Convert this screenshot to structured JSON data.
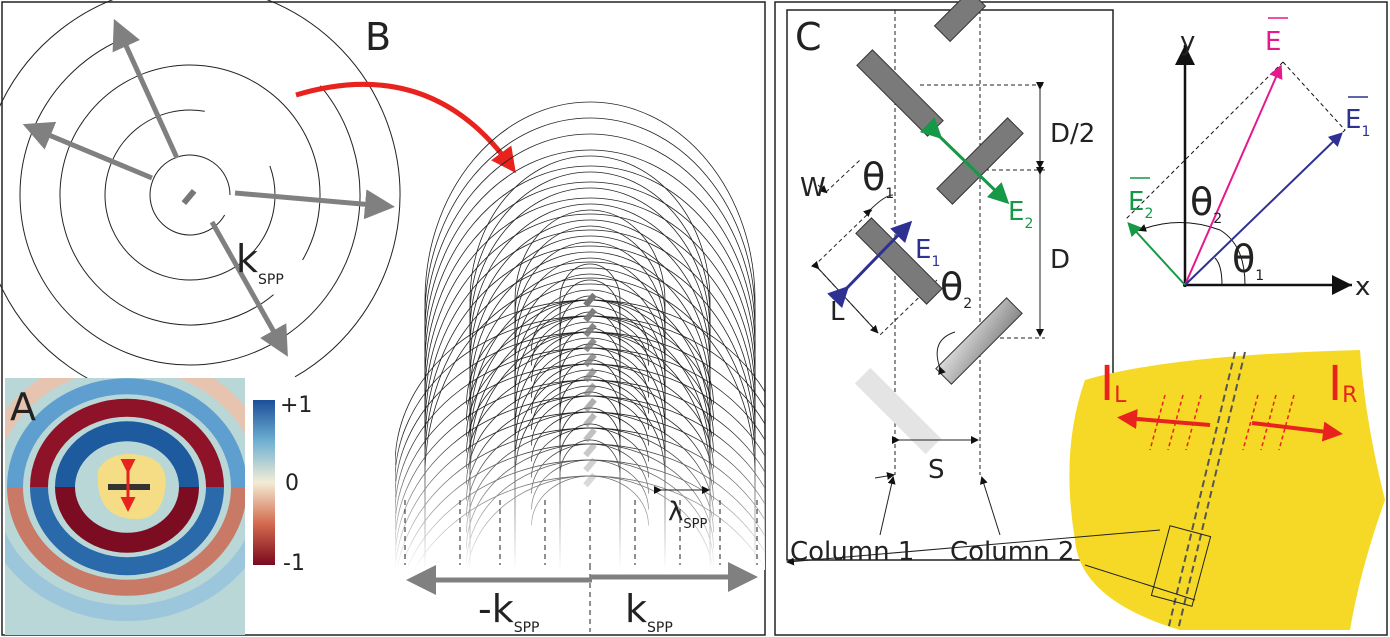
{
  "panel_a": {
    "label": "A",
    "colorbar_ticks": [
      "+1",
      "0",
      "-1"
    ]
  },
  "panel_b": {
    "label": "B",
    "k_spp": {
      "main": "k",
      "sub": "SPP"
    },
    "lambda_spp": {
      "main": "λ",
      "sub": "SPP"
    },
    "minus_k_spp": {
      "main": "-k",
      "sub": "SPP"
    },
    "plus_k_spp": {
      "main": "k",
      "sub": "SPP"
    }
  },
  "panel_c": {
    "label": "C",
    "w": "W",
    "l": "L",
    "theta_1": {
      "main": "θ",
      "sub": "1"
    },
    "theta_2": {
      "main": "θ",
      "sub": "2"
    },
    "e_1": {
      "main": "E",
      "sub": "1"
    },
    "e_2": {
      "main": "E",
      "sub": "2"
    },
    "d_half": "D/2",
    "d": "D",
    "s": "S",
    "column_1": "Column 1",
    "column_2": "Column 2"
  },
  "vector_diagram": {
    "y": "y",
    "x": "x",
    "e": "E",
    "e_1": {
      "main": "E",
      "sub": "1"
    },
    "e_2": {
      "main": "E",
      "sub": "2"
    },
    "theta_1": {
      "main": "θ",
      "sub": "1"
    },
    "theta_2": {
      "main": "θ",
      "sub": "2"
    }
  },
  "sample": {
    "i_l": {
      "main": "I",
      "sub": "L"
    },
    "i_r": {
      "main": "I",
      "sub": "R"
    }
  }
}
